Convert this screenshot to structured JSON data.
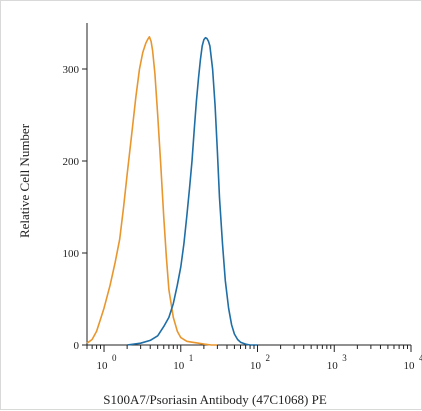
{
  "chart_data": {
    "type": "line",
    "title": "",
    "xlabel": "S100A7/Psoriasin Antibody (47C1068) PE",
    "ylabel": "Relative Cell Number",
    "x_scale": "log",
    "xlim": [
      0.6,
      10000
    ],
    "ylim": [
      0,
      350
    ],
    "grid": false,
    "x_ticks": [
      {
        "value": 1,
        "base": "10",
        "exp": "0"
      },
      {
        "value": 10,
        "base": "10",
        "exp": "1"
      },
      {
        "value": 100,
        "base": "10",
        "exp": "2"
      },
      {
        "value": 1000,
        "base": "10",
        "exp": "3"
      },
      {
        "value": 10000,
        "base": "10",
        "exp": "4"
      }
    ],
    "y_ticks": [
      {
        "value": 0,
        "label": "0"
      },
      {
        "value": 100,
        "label": "100"
      },
      {
        "value": 200,
        "label": "200"
      },
      {
        "value": 300,
        "label": "300"
      }
    ],
    "series": [
      {
        "color": "#e8962e",
        "x": [
          0.6,
          0.7,
          0.8,
          0.9,
          1.0,
          1.2,
          1.4,
          1.6,
          1.8,
          2.0,
          2.3,
          2.6,
          2.9,
          3.2,
          3.5,
          3.7,
          3.9,
          4.1,
          4.3,
          4.6,
          5.0,
          5.5,
          6.0,
          6.5,
          7.0,
          8.0,
          9.0,
          10,
          12,
          14,
          17,
          20,
          25,
          30
        ],
        "y": [
          2,
          6,
          15,
          28,
          40,
          65,
          90,
          115,
          150,
          185,
          230,
          270,
          300,
          318,
          328,
          332,
          335,
          330,
          320,
          295,
          250,
          195,
          140,
          95,
          60,
          30,
          15,
          8,
          4,
          3,
          2,
          1,
          0,
          0
        ]
      },
      {
        "color": "#1f6ea6",
        "x": [
          2,
          3,
          4,
          5,
          6,
          7,
          8,
          9,
          10,
          11,
          12,
          13,
          14,
          15,
          16,
          17,
          18,
          19,
          20,
          21,
          22,
          23,
          24,
          26,
          28,
          30,
          32,
          35,
          38,
          42,
          46,
          50,
          55,
          60,
          70,
          80,
          100
        ],
        "y": [
          0,
          2,
          5,
          10,
          20,
          30,
          45,
          65,
          85,
          110,
          140,
          170,
          200,
          235,
          265,
          290,
          310,
          325,
          332,
          334,
          333,
          330,
          325,
          300,
          260,
          210,
          160,
          110,
          70,
          40,
          22,
          12,
          6,
          3,
          1,
          0,
          0
        ]
      }
    ]
  }
}
